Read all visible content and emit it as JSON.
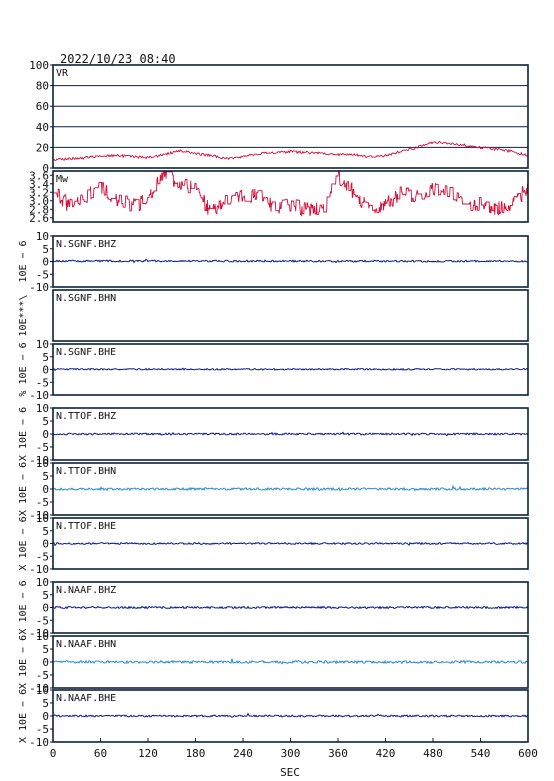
{
  "title": "2022/10/23  08:40",
  "xlabel": "SEC",
  "colors": {
    "frame": "#0b1f3a",
    "vr": "#d0103a",
    "bh_dark": "#0a1a8a",
    "bh_light": "#2a8ad0"
  },
  "chart_data": [
    {
      "type": "line",
      "label": "VR",
      "ylim": [
        0,
        100
      ],
      "yticks": [
        0,
        20,
        40,
        60,
        80,
        100
      ],
      "grid": true,
      "xlim": [
        0,
        600
      ],
      "series": [
        {
          "color": "#d0103a",
          "x": [
            0,
            20,
            40,
            60,
            80,
            100,
            120,
            140,
            160,
            180,
            200,
            220,
            240,
            260,
            280,
            300,
            320,
            340,
            360,
            380,
            400,
            420,
            440,
            460,
            480,
            500,
            520,
            540,
            560,
            580,
            600
          ],
          "values": [
            8,
            9,
            10,
            12,
            12,
            11,
            10,
            13,
            17,
            14,
            12,
            9,
            11,
            14,
            15,
            16,
            15,
            14,
            13,
            13,
            11,
            12,
            16,
            20,
            25,
            24,
            22,
            20,
            18,
            16,
            12
          ]
        }
      ]
    },
    {
      "type": "line",
      "label": "Mw",
      "ylim": [
        2.5,
        3.7
      ],
      "yticks": [
        2.6,
        2.8,
        3.0,
        3.2,
        3.4,
        3.6
      ],
      "ytick_labels": [
        "2.6",
        "2.8",
        "3.0",
        "3.2",
        "3.4",
        "3.6"
      ],
      "xlim": [
        0,
        600
      ],
      "series": [
        {
          "color": "#d0103a",
          "x": [
            0,
            20,
            40,
            60,
            80,
            100,
            120,
            140,
            160,
            180,
            200,
            220,
            240,
            260,
            280,
            300,
            320,
            340,
            360,
            380,
            400,
            420,
            440,
            460,
            480,
            500,
            520,
            540,
            560,
            580,
            600
          ],
          "values": [
            3.2,
            2.9,
            3.1,
            3.3,
            3.0,
            2.9,
            3.0,
            3.7,
            3.4,
            3.3,
            2.7,
            3.0,
            3.1,
            3.2,
            2.8,
            2.9,
            2.8,
            2.8,
            3.6,
            3.2,
            2.8,
            2.9,
            3.2,
            3.1,
            3.3,
            3.2,
            2.9,
            2.9,
            2.8,
            2.9,
            3.3
          ]
        }
      ]
    },
    {
      "type": "line",
      "label": "N.SGNF.BHZ",
      "ylabel": "10E − 6",
      "ylim": [
        -10,
        10
      ],
      "yticks": [
        -10,
        -5,
        0,
        5,
        10
      ],
      "color": "#0a1a8a",
      "noise": 0.35,
      "xlim": [
        0,
        600
      ],
      "series": [
        {
          "x": [
            0,
            600
          ],
          "values": [
            0.2,
            0.1
          ]
        }
      ]
    },
    {
      "type": "line",
      "label": "N.SGNF.BHN",
      "ylabel": "10E***\\",
      "ylim": [],
      "yticks": [],
      "xlim": [
        0,
        600
      ],
      "series": []
    },
    {
      "type": "line",
      "label": "N.SGNF.BHE",
      "ylabel": "% 10E − 6",
      "ylim": [
        -10,
        10
      ],
      "yticks": [
        -10,
        -5,
        0,
        5,
        10
      ],
      "color": "#0a1a8a",
      "noise": 0.3,
      "xlim": [
        0,
        600
      ],
      "series": [
        {
          "x": [
            0,
            600
          ],
          "values": [
            0.1,
            0.1
          ]
        }
      ]
    },
    {
      "type": "line",
      "label": "N.TTOF.BHZ",
      "ylabel": "X 10E − 6",
      "ylim": [
        -10,
        10
      ],
      "yticks": [
        -10,
        -5,
        0,
        5,
        10
      ],
      "color": "#0a1a8a",
      "noise": 0.35,
      "xlim": [
        0,
        600
      ],
      "series": [
        {
          "x": [
            0,
            600
          ],
          "values": [
            0.0,
            0.0
          ]
        }
      ]
    },
    {
      "type": "line",
      "label": "N.TTOF.BHN",
      "ylabel": "X 10E − 6",
      "ylim": [
        -10,
        10
      ],
      "yticks": [
        -10,
        -5,
        0,
        5,
        10
      ],
      "color": "#2a8ad0",
      "noise": 0.45,
      "xlim": [
        0,
        600
      ],
      "series": [
        {
          "x": [
            0,
            600
          ],
          "values": [
            0.0,
            0.0
          ]
        }
      ]
    },
    {
      "type": "line",
      "label": "N.TTOF.BHE",
      "ylabel": "X 10E − 6",
      "ylim": [
        -10,
        10
      ],
      "yticks": [
        -10,
        -5,
        0,
        5,
        10
      ],
      "color": "#0a1a8a",
      "noise": 0.35,
      "xlim": [
        0,
        600
      ],
      "series": [
        {
          "x": [
            0,
            600
          ],
          "values": [
            0.0,
            0.0
          ]
        }
      ]
    },
    {
      "type": "line",
      "label": "N.NAAF.BHZ",
      "ylabel": "X 10E − 6",
      "ylim": [
        -10,
        10
      ],
      "yticks": [
        -10,
        -5,
        0,
        5,
        10
      ],
      "color": "#0a1a8a",
      "noise": 0.4,
      "xlim": [
        0,
        600
      ],
      "series": [
        {
          "x": [
            0,
            600
          ],
          "values": [
            0.0,
            0.0
          ]
        }
      ]
    },
    {
      "type": "line",
      "label": "N.NAAF.BHN",
      "ylabel": "X 10E − 6",
      "ylim": [
        -10,
        10
      ],
      "yticks": [
        -10,
        -5,
        0,
        5,
        10
      ],
      "color": "#2a8ad0",
      "noise": 0.5,
      "xlim": [
        0,
        600
      ],
      "series": [
        {
          "x": [
            0,
            600
          ],
          "values": [
            0.0,
            0.0
          ]
        }
      ]
    },
    {
      "type": "line",
      "label": "N.NAAF.BHE",
      "ylabel": "X 10E − 6",
      "ylim": [
        -10,
        10
      ],
      "yticks": [
        -10,
        -5,
        0,
        5,
        10
      ],
      "color": "#0a1a8a",
      "noise": 0.35,
      "xlim": [
        0,
        600
      ],
      "series": [
        {
          "x": [
            0,
            600
          ],
          "values": [
            0.0,
            0.0
          ]
        }
      ]
    }
  ],
  "xticks": [
    0,
    60,
    120,
    180,
    240,
    300,
    360,
    420,
    480,
    540,
    600
  ]
}
